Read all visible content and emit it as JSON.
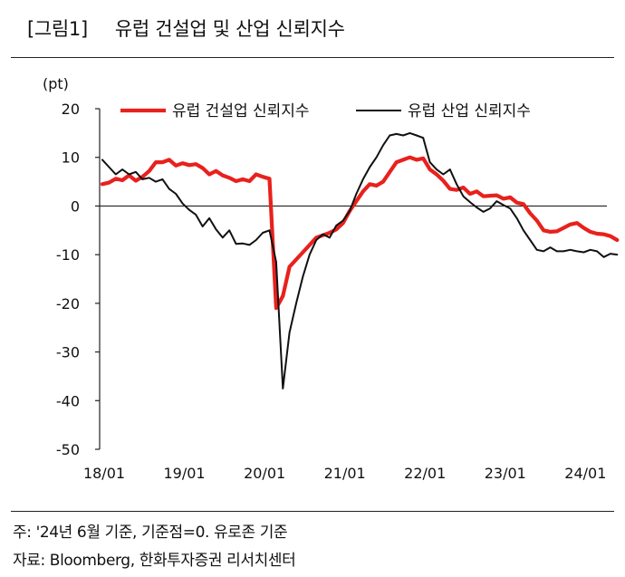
{
  "header": {
    "figure_label": "[그림1]",
    "title": "유럽 건설업 및 산업 신뢰지수"
  },
  "footer": {
    "note": "주: '24년 6월 기준, 기준점=0. 유로존 기준",
    "source": "자료: Bloomberg, 한화투자증권 리서치센터"
  },
  "chart_data": {
    "type": "line",
    "title": "유럽 건설업 및 산업 신뢰지수",
    "ylabel": "(pt)",
    "xlabel": "",
    "ylim": [
      -50,
      20
    ],
    "yticks": [
      20,
      10,
      0,
      -10,
      -20,
      -30,
      -40,
      -50
    ],
    "xticks": [
      "18/01",
      "19/01",
      "20/01",
      "21/01",
      "22/01",
      "23/01",
      "24/01"
    ],
    "x_start": "2018-01",
    "x_end": "2024-06",
    "grid": false,
    "legend_position": "top",
    "series": [
      {
        "name": "유럽 건설업 신뢰지수",
        "color": "#e8211d",
        "values": [
          4.5,
          4.8,
          5.6,
          5.3,
          6.3,
          5.2,
          6.0,
          7.2,
          9.0,
          9.0,
          9.5,
          8.3,
          8.8,
          8.4,
          8.6,
          7.8,
          6.5,
          7.2,
          6.3,
          5.8,
          5.1,
          5.5,
          5.1,
          6.5,
          6.0,
          5.6,
          -21.0,
          -18.5,
          -12.5,
          -11.0,
          -9.5,
          -8.0,
          -6.5,
          -6.0,
          -5.5,
          -4.8,
          -3.5,
          -1.0,
          1.0,
          3.0,
          4.5,
          4.2,
          5.0,
          7.0,
          9.0,
          9.5,
          10.0,
          9.5,
          9.8,
          7.5,
          6.5,
          5.2,
          3.5,
          3.3,
          3.8,
          2.5,
          3.0,
          2.0,
          2.1,
          2.2,
          1.5,
          1.8,
          0.7,
          0.4,
          -1.5,
          -3.0,
          -5.0,
          -5.3,
          -5.2,
          -4.5,
          -3.8,
          -3.5,
          -4.5,
          -5.3,
          -5.7,
          -5.8,
          -6.2,
          -7.0
        ]
      },
      {
        "name": "유럽 산업 신뢰지수",
        "color": "#111111",
        "values": [
          9.5,
          8.0,
          6.5,
          7.5,
          6.5,
          7.0,
          5.5,
          5.8,
          5.0,
          5.5,
          3.5,
          2.5,
          0.5,
          -0.8,
          -1.8,
          -4.2,
          -2.5,
          -4.8,
          -6.5,
          -5.0,
          -7.8,
          -7.7,
          -8.0,
          -7.0,
          -5.5,
          -5.0,
          -11.5,
          -37.5,
          -26.0,
          -20.0,
          -14.5,
          -10.0,
          -7.0,
          -5.8,
          -6.5,
          -4.0,
          -3.0,
          -1.0,
          2.5,
          5.5,
          8.0,
          10.0,
          12.5,
          14.5,
          14.8,
          14.5,
          15.0,
          14.5,
          14.0,
          9.0,
          7.5,
          6.5,
          7.5,
          4.5,
          2.0,
          0.8,
          -0.3,
          -1.2,
          -0.5,
          1.0,
          0.2,
          -0.5,
          -2.5,
          -5.0,
          -7.0,
          -9.0,
          -9.3,
          -8.5,
          -9.3,
          -9.3,
          -9.0,
          -9.3,
          -9.5,
          -9.0,
          -9.3,
          -10.5,
          -9.8,
          -10.0
        ]
      }
    ]
  }
}
